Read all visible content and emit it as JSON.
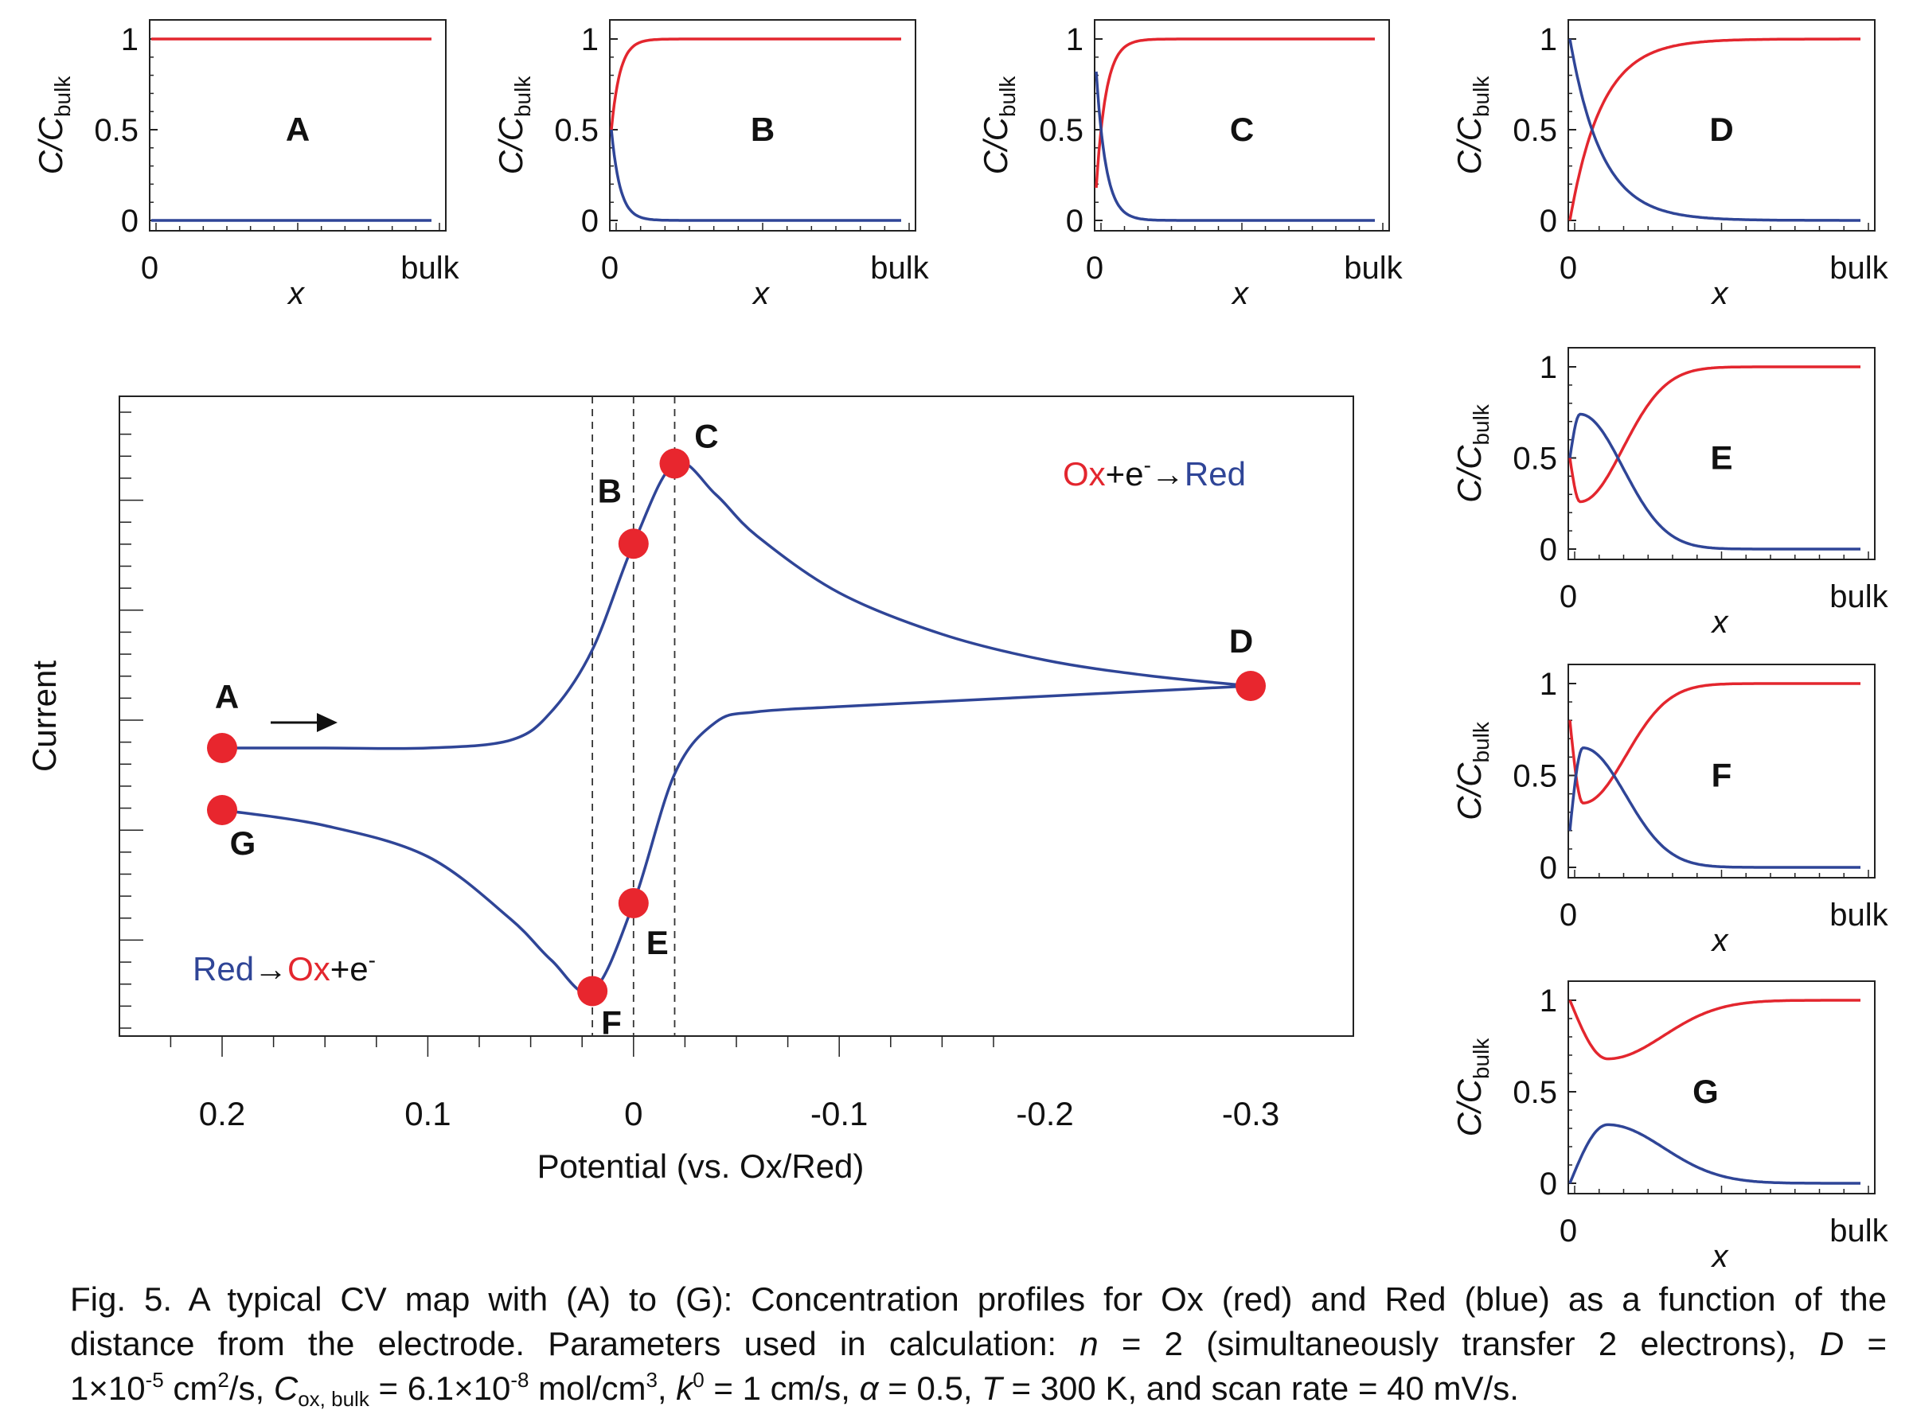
{
  "colors": {
    "ox": "#e3262e",
    "red": "#2f4597",
    "axis": "#222222",
    "marker": "#e8262e"
  },
  "main_chart": {
    "xlabel": "Potential (vs. Ox/Red)",
    "ylabel": "Current",
    "x_ticks": [
      "0.2",
      "0.1",
      "0",
      "-0.1",
      "-0.2",
      "-0.3"
    ],
    "label_ox_red": {
      "a": "Ox",
      "b": "+e",
      "sup": "-",
      "c": "→",
      "d": "Red"
    },
    "label_red_ox": {
      "a": "Red",
      "b": "→",
      "c": "Ox",
      "d": "+e",
      "sup": "-"
    },
    "points": [
      "A",
      "B",
      "C",
      "D",
      "E",
      "F",
      "G"
    ]
  },
  "profile_axis": {
    "ylabel_main": "C/C",
    "ylabel_sub": "bulk",
    "xlabel": "x",
    "x_tick_left": "0",
    "x_tick_right": "bulk",
    "y_ticks": [
      "0",
      "0.5",
      "1"
    ]
  },
  "chart_data": [
    {
      "type": "line",
      "title": "",
      "xlabel": "Potential (vs. Ox/Red)",
      "ylabel": "Current",
      "xlim": [
        0.25,
        -0.35
      ],
      "x_direction": "reversed",
      "y_tick_labels": "none",
      "series": [
        {
          "segment": "forward",
          "x": [
            0.2,
            0.15,
            0.1,
            0.06,
            0.04,
            0.02,
            0.0,
            -0.02,
            -0.04,
            -0.06,
            -0.1,
            -0.15,
            -0.2,
            -0.25,
            -0.3
          ],
          "y": [
            0.0,
            0.0,
            0.0,
            0.03,
            0.14,
            0.38,
            0.79,
            1.1,
            0.98,
            0.82,
            0.6,
            0.44,
            0.34,
            0.28,
            0.24
          ]
        },
        {
          "segment": "reverse",
          "x": [
            -0.3,
            -0.25,
            -0.2,
            -0.15,
            -0.1,
            -0.06,
            -0.04,
            -0.02,
            0.0,
            0.02,
            0.04,
            0.06,
            0.1,
            0.15,
            0.2
          ],
          "y": [
            0.24,
            0.22,
            0.2,
            0.18,
            0.16,
            0.14,
            0.1,
            -0.1,
            -0.6,
            -0.94,
            -0.82,
            -0.66,
            -0.42,
            -0.3,
            -0.24
          ]
        }
      ],
      "annotations": [
        {
          "label": "A",
          "x": 0.2,
          "y": 0.0
        },
        {
          "label": "B",
          "x": 0.0,
          "y": 0.79
        },
        {
          "label": "C",
          "x": -0.02,
          "y": 1.1
        },
        {
          "label": "D",
          "x": -0.3,
          "y": 0.24
        },
        {
          "label": "E",
          "x": 0.0,
          "y": -0.6
        },
        {
          "label": "F",
          "x": 0.02,
          "y": -0.94
        },
        {
          "label": "G",
          "x": 0.2,
          "y": -0.24
        }
      ],
      "reference_lines_x": [
        0.02,
        0.0,
        -0.02
      ]
    },
    {
      "type": "line",
      "panel": "A",
      "ylabel": "C/Cbulk",
      "xlabel": "x",
      "ylim": [
        0,
        1
      ],
      "series": [
        {
          "color": "red",
          "start": 1.0,
          "kind": "flat"
        },
        {
          "color": "blue",
          "start": 0.0,
          "kind": "flat"
        }
      ]
    },
    {
      "type": "line",
      "panel": "B",
      "ylabel": "C/Cbulk",
      "xlabel": "x",
      "ylim": [
        0,
        1
      ],
      "series": [
        {
          "color": "red",
          "start": 0.5,
          "end": 1.0,
          "kind": "rise"
        },
        {
          "color": "blue",
          "start": 0.5,
          "end": 0.0,
          "kind": "fall"
        }
      ]
    },
    {
      "type": "line",
      "panel": "C",
      "ylabel": "C/Cbulk",
      "xlabel": "x",
      "ylim": [
        0,
        1
      ],
      "series": [
        {
          "color": "red",
          "start": 0.18,
          "end": 1.0,
          "kind": "rise"
        },
        {
          "color": "blue",
          "start": 0.82,
          "end": 0.0,
          "kind": "fall"
        }
      ]
    },
    {
      "type": "line",
      "panel": "D",
      "ylabel": "C/Cbulk",
      "xlabel": "x",
      "ylim": [
        0,
        1
      ],
      "series": [
        {
          "color": "red",
          "start": 0.0,
          "end": 1.0,
          "kind": "rise"
        },
        {
          "color": "blue",
          "start": 1.0,
          "end": 0.0,
          "kind": "fall"
        }
      ]
    },
    {
      "type": "line",
      "panel": "E",
      "ylabel": "C/Cbulk",
      "xlabel": "x",
      "ylim": [
        0,
        1
      ],
      "series": [
        {
          "color": "red",
          "start": 0.5,
          "min": 0.26,
          "end": 1.0,
          "kind": "dip"
        },
        {
          "color": "blue",
          "start": 0.5,
          "max": 0.74,
          "end": 0.0,
          "kind": "bump"
        }
      ]
    },
    {
      "type": "line",
      "panel": "F",
      "ylabel": "C/Cbulk",
      "xlabel": "x",
      "ylim": [
        0,
        1
      ],
      "series": [
        {
          "color": "red",
          "start": 0.8,
          "min": 0.35,
          "end": 1.0,
          "kind": "dip"
        },
        {
          "color": "blue",
          "start": 0.2,
          "max": 0.65,
          "end": 0.0,
          "kind": "bump"
        }
      ]
    },
    {
      "type": "line",
      "panel": "G",
      "ylabel": "C/Cbulk",
      "xlabel": "x",
      "ylim": [
        0,
        1
      ],
      "series": [
        {
          "color": "red",
          "start": 1.0,
          "min": 0.68,
          "end": 1.0,
          "kind": "dip"
        },
        {
          "color": "blue",
          "start": 0.0,
          "max": 0.32,
          "end": 0.0,
          "kind": "bump"
        }
      ]
    }
  ],
  "caption": {
    "line1": "Fig. 5. A typical CV map with (A) to (G): Concentration profiles for Ox (red) and Red (blue) as a function of the",
    "line2_a": "distance from the electrode. Parameters used in calculation: ",
    "line2_n": "n",
    "line2_b": " = 2 (simultaneously transfer 2 electrons), ",
    "line2_D": "D",
    "line2_c": " =",
    "line3_a": "1×10",
    "line3_exp1": "-5",
    "line3_b": " cm",
    "line3_exp2": "2",
    "line3_c": "/s, ",
    "line3_C": "C",
    "line3_Csub": "ox, bulk",
    "line3_d": " = 6.1×10",
    "line3_exp3": "-8",
    "line3_e": " mol/cm",
    "line3_exp4": "3",
    "line3_f": ", ",
    "line3_k": "k",
    "line3_ksup": "0",
    "line3_g": " = 1 cm/s, ",
    "line3_alpha": "α",
    "line3_h": " = 0.5, ",
    "line3_T": "T",
    "line3_i": " = 300 K, and scan rate = 40 mV/s."
  }
}
